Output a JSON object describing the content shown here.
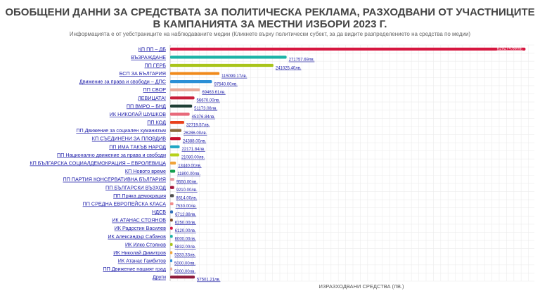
{
  "page": {
    "title": "ОБОБЩЕНИ ДАННИ ЗА СРЕДСТВАТА ЗА ПОЛИТИЧЕСКА РЕКЛАМА, РАЗХОДВАНИ ОТ УЧАСТНИЦИТЕ В КАМПАНИЯТА ЗА МЕСТНИ ИЗБОРИ 2023 Г.",
    "subtitle": "Информацията е от уебстраниците на наблюдаваните медии (Кликнете върху политически субект, за да видите разпределението на средства по медии)"
  },
  "chart_data": {
    "type": "bar",
    "orientation": "horizontal",
    "title": "ОБОБЩЕНИ ДАННИ ЗА СРЕДСТВАТА ЗА ПОЛИТИЧЕСКА РЕКЛАМА, РАЗХОДВАНИ ОТ УЧАСТНИЦИТЕ В КАМПАНИЯТА ЗА МЕСТНИ ИЗБОРИ 2023 Г.",
    "xlabel": "ИЗРАЗХОДВАНИ СРЕДСТВА (ЛВ.)",
    "ylabel": "",
    "xlim": [
      0,
      850000
    ],
    "grid": true,
    "legend": "none",
    "categories": [
      "КП ПП – ДБ",
      "ВЪЗРАЖДАНЕ",
      "ПП ГЕРБ",
      "БСП ЗА БЪЛГАРИЯ",
      "Движение за права и свободи – ДПС",
      "ПП СВОР",
      "ЛЕВИЦАТА!",
      "ПП ВМРО – БНД",
      "ИК НИКОЛАЙ ШУШКОВ",
      "ПП КОД",
      "ПП Движение за социален хуманизъм",
      "КП СЪЕДИНЕНИ ЗА ПЛОВДИВ",
      "ПП ИМА ТАКЪВ НАРОД",
      "ПП Национално движение за права и свободи",
      "КП БЪЛГАРСКА СОЦИАЛДЕМОКРАЦИЯ – ЕВРОЛЕВИЦА",
      "КП Новото време",
      "ПП ПАРТИЯ КОНСЕРВАТИВНА БЪЛГАРИЯ",
      "ПП БЪЛГАРСКИ ВЪЗХОД",
      "ПП Пряка демокрация",
      "ПП СРЕДНА ЕВРОПЕЙСКА КЛАСА",
      "НДСВ",
      "ИК АТАНАС СТОЯНОВ",
      "ИК Радостин Василев",
      "ИК Александър Сабанов",
      "ИК Илко Стоянов",
      "ИК Николай Димитров",
      "ИК Атанас Гамбитов",
      "ПП Движение нашият град",
      "Други"
    ],
    "values": [
      829274.68,
      271757.69,
      241025.4,
      115099.17,
      97540.0,
      69463.61,
      56670.0,
      51173.08,
      45376.84,
      32719.57,
      26286.0,
      24388.0,
      22171.84,
      21080.0,
      13440.0,
      11800.0,
      9550.0,
      9210.0,
      8614.0,
      7530.0,
      6712.88,
      6250.0,
      6120.0,
      6000.0,
      5832.0,
      5333.33,
      5000.0,
      5000.0,
      57501.21
    ],
    "value_labels": [
      "829274.68лв.",
      "271757.69лв.",
      "241025.40лв.",
      "115099.17лв.",
      "97540.00лв.",
      "69463.61лв.",
      "56670.00лв.",
      "51173.08лв.",
      "45376.84лв.",
      "32719.57лв.",
      "26286.00лв.",
      "24388.00лв.",
      "22171.84лв.",
      "21080.00лв.",
      "13440.00лв.",
      "11800.00лв.",
      "9550.00лв.",
      "9210.00лв.",
      "8614.00лв.",
      "7530.00лв.",
      "6712.88лв.",
      "6250.00лв.",
      "6120.00лв.",
      "6000.00лв.",
      "5832.00лв.",
      "5333.33лв.",
      "5000.00лв.",
      "5000.00лв.",
      "57501.21лв."
    ],
    "colors": [
      "#d6163f",
      "#1ab3a6",
      "#a9c41a",
      "#f08a1c",
      "#2b8fd6",
      "#e8a898",
      "#c91e3a",
      "#1f3f36",
      "#e8697a",
      "#e8401c",
      "#8c6a3c",
      "#c8102e",
      "#1fa6c4",
      "#b7d11b",
      "#f0a33a",
      "#15a050",
      "#e89aa0",
      "#a5153b",
      "#4d4d4d",
      "#f28c8c",
      "#2f6fb8",
      "#7a4a2a",
      "#d6163f",
      "#1ab3a6",
      "#a9c41a",
      "#f0a33a",
      "#2b8fd6",
      "#e8a898",
      "#8e1a3c"
    ]
  }
}
